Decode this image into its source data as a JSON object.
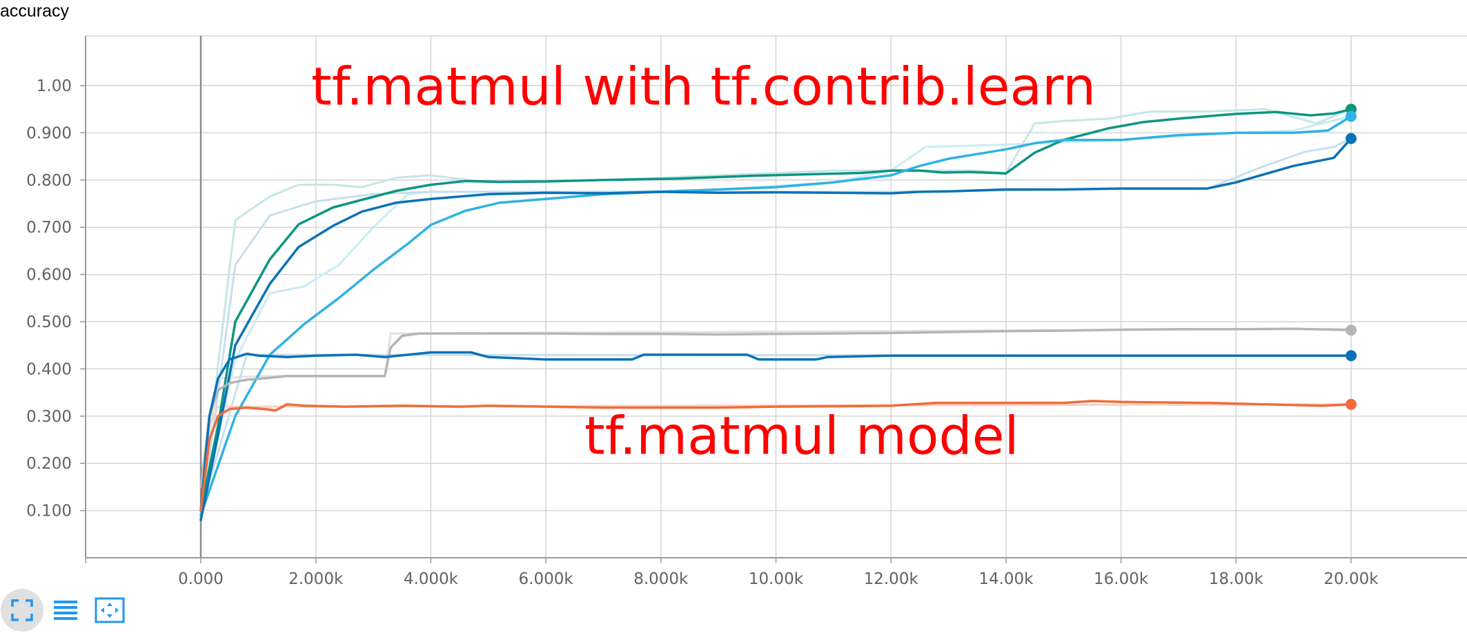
{
  "chart_data": {
    "type": "line",
    "title": "accuracy",
    "xlim": [
      -2000,
      22000
    ],
    "ylim": [
      0,
      1.1
    ],
    "grid": true,
    "x_ticks": [
      0,
      2000,
      4000,
      6000,
      8000,
      10000,
      12000,
      14000,
      16000,
      18000,
      20000
    ],
    "x_tick_labels": [
      "0.000",
      "2.000k",
      "4.000k",
      "6.000k",
      "8.000k",
      "10.00k",
      "12.00k",
      "14.00k",
      "16.00k",
      "18.00k",
      "20.00k"
    ],
    "y_ticks": [
      0.1,
      0.2,
      0.3,
      0.4,
      0.5,
      0.6,
      0.7,
      0.8,
      0.9,
      1.0
    ],
    "y_tick_labels": [
      "0.100",
      "0.200",
      "0.300",
      "0.400",
      "0.500",
      "0.600",
      "0.700",
      "0.800",
      "0.900",
      "1.00"
    ],
    "annotations": [
      {
        "text": "tf.matmul with tf.contrib.learn",
        "x": 0,
        "y": 0.96,
        "color": "#ff0000"
      },
      {
        "text": "tf.matmul model",
        "x": 4750,
        "y": 0.22,
        "color": "#ff0000"
      }
    ],
    "series": [
      {
        "color": "#0e9582",
        "raw_color": "#c5e6e6",
        "x": [
          0,
          300,
          600,
          1200,
          1700,
          2300,
          2800,
          3400,
          4000,
          4600,
          5200,
          6000,
          7000,
          8300,
          9600,
          10500,
          11500,
          12000,
          12500,
          12900,
          13400,
          14000,
          14500,
          15000,
          15800,
          16400,
          17000,
          18000,
          18700,
          19300,
          19700,
          20000
        ],
        "y": [
          0.1,
          0.28,
          0.5,
          0.632,
          0.706,
          0.742,
          0.758,
          0.777,
          0.79,
          0.798,
          0.796,
          0.797,
          0.8,
          0.803,
          0.809,
          0.812,
          0.815,
          0.82,
          0.82,
          0.816,
          0.817,
          0.814,
          0.858,
          0.885,
          0.91,
          0.923,
          0.93,
          0.94,
          0.944,
          0.937,
          0.941,
          0.95
        ],
        "raw_x": [
          0,
          600,
          1200,
          1700,
          2300,
          2800,
          3400,
          4000,
          5000,
          7000,
          9000,
          11000,
          12500,
          13500,
          14000,
          14500,
          15000,
          15800,
          16500,
          17500,
          18500,
          19400,
          20000
        ],
        "raw_y": [
          0.1,
          0.715,
          0.765,
          0.79,
          0.79,
          0.785,
          0.805,
          0.81,
          0.795,
          0.8,
          0.81,
          0.82,
          0.82,
          0.82,
          0.815,
          0.92,
          0.925,
          0.93,
          0.945,
          0.945,
          0.95,
          0.92,
          0.95
        ]
      },
      {
        "color": "#2fb2e3",
        "raw_color": "#c8ecf7",
        "x": [
          0,
          600,
          1200,
          1800,
          2400,
          3000,
          3600,
          4000,
          4600,
          5200,
          6000,
          7000,
          8000,
          9000,
          10000,
          11000,
          12000,
          12500,
          13000,
          13500,
          14000,
          14500,
          15000,
          16000,
          17000,
          18000,
          19000,
          19600,
          20000
        ],
        "y": [
          0.09,
          0.3,
          0.43,
          0.495,
          0.55,
          0.61,
          0.665,
          0.705,
          0.735,
          0.752,
          0.76,
          0.77,
          0.775,
          0.78,
          0.785,
          0.795,
          0.81,
          0.83,
          0.845,
          0.855,
          0.865,
          0.878,
          0.885,
          0.885,
          0.895,
          0.9,
          0.9,
          0.905,
          0.935
        ],
        "raw_x": [
          0,
          600,
          1200,
          1800,
          2400,
          3000,
          3600,
          4000,
          5000,
          7000,
          9000,
          11000,
          12000,
          12600,
          14000,
          16000,
          18000,
          19000,
          20000
        ],
        "raw_y": [
          0.09,
          0.42,
          0.56,
          0.575,
          0.62,
          0.7,
          0.77,
          0.775,
          0.775,
          0.775,
          0.78,
          0.795,
          0.82,
          0.87,
          0.875,
          0.885,
          0.9,
          0.905,
          0.935
        ]
      },
      {
        "color": "#0b72b5",
        "raw_color": "#c6dfef",
        "x": [
          0,
          300,
          600,
          1200,
          1700,
          2300,
          2800,
          3400,
          4000,
          5000,
          6000,
          7000,
          8000,
          9000,
          10000,
          11000,
          12000,
          12500,
          13000,
          14000,
          15000,
          16000,
          17500,
          18000,
          19000,
          19700,
          20000
        ],
        "y": [
          0.08,
          0.26,
          0.45,
          0.58,
          0.658,
          0.703,
          0.733,
          0.752,
          0.76,
          0.77,
          0.773,
          0.772,
          0.775,
          0.773,
          0.774,
          0.773,
          0.772,
          0.775,
          0.776,
          0.78,
          0.78,
          0.782,
          0.782,
          0.795,
          0.83,
          0.847,
          0.888
        ],
        "raw_x": [
          0,
          600,
          1200,
          2000,
          3000,
          4000,
          6000,
          8000,
          10000,
          12000,
          14000,
          16000,
          17500,
          18500,
          19200,
          19700,
          20000
        ],
        "raw_y": [
          0.08,
          0.62,
          0.725,
          0.755,
          0.77,
          0.775,
          0.775,
          0.775,
          0.775,
          0.775,
          0.778,
          0.782,
          0.782,
          0.83,
          0.86,
          0.87,
          0.888
        ]
      },
      {
        "color": "#b5b5b5",
        "raw_color": "#e2e2e2",
        "x": [
          0,
          150,
          300,
          500,
          800,
          1100,
          1500,
          2000,
          2600,
          3200,
          3300,
          3500,
          3800,
          4200,
          5000,
          6000,
          7000,
          8000,
          9000,
          10000,
          11000,
          12000,
          13000,
          14000,
          15000,
          16000,
          17000,
          18000,
          19000,
          20000
        ],
        "y": [
          0.15,
          0.3,
          0.355,
          0.37,
          0.377,
          0.38,
          0.385,
          0.385,
          0.385,
          0.385,
          0.445,
          0.47,
          0.475,
          0.475,
          0.475,
          0.475,
          0.474,
          0.474,
          0.473,
          0.474,
          0.475,
          0.476,
          0.478,
          0.48,
          0.481,
          0.483,
          0.484,
          0.484,
          0.485,
          0.482
        ],
        "raw_x": [
          0,
          300,
          1000,
          3200,
          3300,
          20000
        ],
        "raw_y": [
          0.15,
          0.38,
          0.385,
          0.385,
          0.475,
          0.485
        ]
      },
      {
        "color": "#0b72b5",
        "raw_color": "#c6dfef",
        "x": [
          0,
          150,
          300,
          500,
          800,
          1000,
          1500,
          2000,
          2700,
          3200,
          3600,
          4000,
          4700,
          5000,
          6000,
          7500,
          7700,
          9500,
          9700,
          10700,
          10900,
          12000,
          13000,
          14000,
          15000,
          16000,
          17000,
          18000,
          19000,
          20000
        ],
        "y": [
          0.1,
          0.3,
          0.38,
          0.42,
          0.432,
          0.428,
          0.425,
          0.428,
          0.43,
          0.425,
          0.43,
          0.435,
          0.435,
          0.425,
          0.42,
          0.42,
          0.43,
          0.43,
          0.42,
          0.42,
          0.425,
          0.428,
          0.428,
          0.428,
          0.428,
          0.428,
          0.428,
          0.428,
          0.428,
          0.428
        ],
        "raw_x": [
          0,
          800,
          20000
        ],
        "raw_y": [
          0.1,
          0.43,
          0.428
        ]
      },
      {
        "color": "#f26b3a",
        "raw_color": "#fbd3c4",
        "x": [
          0,
          150,
          300,
          500,
          800,
          1100,
          1300,
          1500,
          1800,
          2500,
          3500,
          4500,
          5000,
          6000,
          7000,
          9000,
          10000,
          12000,
          12800,
          13500,
          15000,
          15500,
          16000,
          17500,
          18500,
          19500,
          20000
        ],
        "y": [
          0.1,
          0.25,
          0.3,
          0.315,
          0.318,
          0.315,
          0.312,
          0.325,
          0.322,
          0.32,
          0.322,
          0.32,
          0.322,
          0.32,
          0.318,
          0.318,
          0.32,
          0.322,
          0.328,
          0.328,
          0.328,
          0.332,
          0.33,
          0.328,
          0.325,
          0.322,
          0.325
        ],
        "raw_x": [
          0,
          150,
          300,
          600,
          20000
        ],
        "raw_y": [
          0.1,
          0.28,
          0.32,
          0.32,
          0.325
        ]
      }
    ]
  },
  "toolbar": {
    "expand_icon": "fullscreen-icon",
    "log_icon": "lines-icon",
    "fit_icon": "fit-domain-icon",
    "accent_color": "#2196f3"
  }
}
